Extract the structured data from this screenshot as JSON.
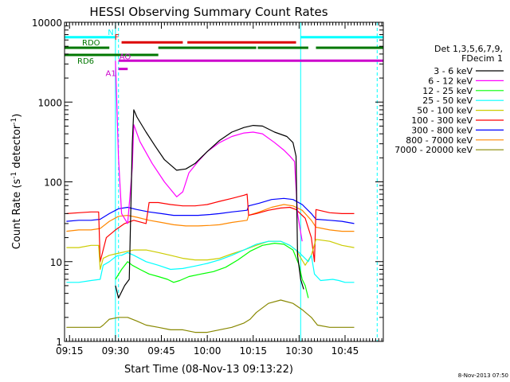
{
  "chart_data": {
    "type": "line",
    "title": "HESSI Observing Summary Count Rates",
    "xlabel": "Start Time (08-Nov-13 09:13:22)",
    "ylabel": "Count Rate (s^-1 detector^-1)",
    "ylabel_parts": {
      "base": "Count Rate (s",
      "sup1": "-1",
      "mid": " detector",
      "sup2": "-1",
      "end": ")"
    },
    "x_ticks": [
      "09:15",
      "09:30",
      "09:45",
      "10:00",
      "10:15",
      "10:30",
      "10:45"
    ],
    "x_tick_minutes": [
      15,
      30,
      45,
      60,
      75,
      90,
      105
    ],
    "y_ticks": [
      "1",
      "10",
      "100",
      "1000",
      "10000"
    ],
    "xlim_minutes": [
      13.37,
      117.5
    ],
    "ylim": [
      1,
      10000
    ],
    "y_scale": "log",
    "legend_placement": "right",
    "legend_title": [
      "Det 1,3,5,6,7,9,",
      "FDecim 1"
    ],
    "timestamp": "8-Nov-2013 07:50",
    "series": [
      {
        "name": "3 - 6 keV",
        "color": "#000000",
        "points": [
          [
            30,
            5
          ],
          [
            31,
            3.5
          ],
          [
            33,
            5
          ],
          [
            34.5,
            6
          ],
          [
            35.5,
            300
          ],
          [
            36,
            800
          ],
          [
            37,
            650
          ],
          [
            40,
            420
          ],
          [
            43,
            280
          ],
          [
            46,
            190
          ],
          [
            50,
            140
          ],
          [
            53,
            145
          ],
          [
            56,
            170
          ],
          [
            60,
            240
          ],
          [
            64,
            330
          ],
          [
            68,
            420
          ],
          [
            72,
            480
          ],
          [
            75,
            510
          ],
          [
            78,
            500
          ],
          [
            82,
            420
          ],
          [
            86,
            370
          ],
          [
            88,
            310
          ],
          [
            89,
            210
          ],
          [
            89.5,
            12
          ],
          [
            90.5,
            6
          ],
          [
            91.5,
            4.5
          ]
        ]
      },
      {
        "name": "6 - 12 keV",
        "color": "#ff00ff",
        "points": [
          [
            30,
            3300
          ],
          [
            31,
            200
          ],
          [
            32,
            40
          ],
          [
            34,
            30
          ],
          [
            35.5,
            150
          ],
          [
            36,
            520
          ],
          [
            38,
            320
          ],
          [
            42,
            170
          ],
          [
            46,
            100
          ],
          [
            50,
            65
          ],
          [
            52,
            75
          ],
          [
            54,
            130
          ],
          [
            57,
            180
          ],
          [
            60,
            240
          ],
          [
            64,
            310
          ],
          [
            68,
            370
          ],
          [
            72,
            410
          ],
          [
            75,
            420
          ],
          [
            78,
            400
          ],
          [
            82,
            310
          ],
          [
            85,
            250
          ],
          [
            87,
            210
          ],
          [
            88.5,
            180
          ],
          [
            89.5,
            40
          ],
          [
            91,
            18
          ]
        ]
      },
      {
        "name": "12 - 25 keV",
        "color": "#00ff00",
        "points": [
          [
            30,
            6
          ],
          [
            32,
            8
          ],
          [
            34,
            10
          ],
          [
            35.5,
            9
          ],
          [
            38,
            8
          ],
          [
            41,
            7
          ],
          [
            44,
            6.5
          ],
          [
            47,
            6
          ],
          [
            49,
            5.5
          ],
          [
            51,
            5.8
          ],
          [
            54,
            6.5
          ],
          [
            58,
            7
          ],
          [
            62,
            7.5
          ],
          [
            66,
            8.5
          ],
          [
            70,
            10.5
          ],
          [
            74,
            13.5
          ],
          [
            78,
            16
          ],
          [
            82,
            17
          ],
          [
            85,
            16.5
          ],
          [
            88,
            14
          ],
          [
            90,
            9
          ],
          [
            91,
            6
          ],
          [
            92,
            5
          ],
          [
            93,
            3.5
          ]
        ]
      },
      {
        "name": "25 - 50 keV",
        "color": "#00ffff",
        "points": [
          [
            14,
            5.5
          ],
          [
            18,
            5.5
          ],
          [
            22,
            5.8
          ],
          [
            25,
            6
          ],
          [
            26,
            9
          ],
          [
            28,
            10
          ],
          [
            30,
            11.5
          ],
          [
            31,
            12
          ],
          [
            32,
            12
          ],
          [
            34,
            13
          ],
          [
            36,
            12
          ],
          [
            40,
            10
          ],
          [
            44,
            9
          ],
          [
            48,
            8
          ],
          [
            52,
            8.2
          ],
          [
            56,
            8.8
          ],
          [
            60,
            9.5
          ],
          [
            64,
            10.5
          ],
          [
            68,
            12
          ],
          [
            72,
            14
          ],
          [
            76,
            16.5
          ],
          [
            80,
            18
          ],
          [
            84,
            18
          ],
          [
            87,
            16
          ],
          [
            90,
            13
          ],
          [
            93,
            10
          ],
          [
            94,
            12
          ],
          [
            95,
            7
          ],
          [
            97,
            5.8
          ],
          [
            101,
            6
          ],
          [
            103,
            5.8
          ],
          [
            105,
            5.5
          ],
          [
            108,
            5.5
          ]
        ]
      },
      {
        "name": "50 - 100 keV",
        "color": "#cccc00",
        "points": [
          [
            14,
            15
          ],
          [
            18,
            15
          ],
          [
            22,
            16
          ],
          [
            24.5,
            16
          ],
          [
            25,
            8
          ],
          [
            26,
            11
          ],
          [
            28,
            12
          ],
          [
            30,
            12.5
          ],
          [
            32,
            13
          ],
          [
            36,
            14
          ],
          [
            40,
            14
          ],
          [
            44,
            13
          ],
          [
            48,
            12
          ],
          [
            52,
            11
          ],
          [
            56,
            10.5
          ],
          [
            60,
            10.5
          ],
          [
            64,
            11
          ],
          [
            68,
            12.5
          ],
          [
            72,
            14
          ],
          [
            76,
            16
          ],
          [
            80,
            18
          ],
          [
            84,
            18
          ],
          [
            87,
            16
          ],
          [
            89,
            14
          ],
          [
            92,
            9
          ],
          [
            94,
            12
          ],
          [
            95.5,
            19
          ],
          [
            100,
            18
          ],
          [
            104,
            16
          ],
          [
            108,
            15
          ]
        ]
      },
      {
        "name": "100 - 300 keV",
        "color": "#ff0000",
        "points": [
          [
            14,
            40
          ],
          [
            18,
            41
          ],
          [
            22,
            42
          ],
          [
            24.5,
            42
          ],
          [
            25,
            10
          ],
          [
            27,
            20
          ],
          [
            30,
            25
          ],
          [
            33,
            30
          ],
          [
            36,
            33
          ],
          [
            40,
            30
          ],
          [
            41,
            55
          ],
          [
            44,
            55
          ],
          [
            48,
            52
          ],
          [
            52,
            50
          ],
          [
            56,
            50
          ],
          [
            60,
            52
          ],
          [
            64,
            57
          ],
          [
            68,
            62
          ],
          [
            72,
            68
          ],
          [
            73,
            70
          ],
          [
            73.5,
            38
          ],
          [
            76,
            40
          ],
          [
            80,
            44
          ],
          [
            84,
            47
          ],
          [
            87,
            48
          ],
          [
            89,
            45
          ],
          [
            92,
            35
          ],
          [
            94,
            20
          ],
          [
            95,
            10
          ],
          [
            95.5,
            45
          ],
          [
            100,
            41
          ],
          [
            104,
            40
          ],
          [
            108,
            40
          ]
        ]
      },
      {
        "name": "300 - 800 keV",
        "color": "#0000ff",
        "points": [
          [
            14,
            32
          ],
          [
            18,
            33
          ],
          [
            22,
            33
          ],
          [
            25,
            34
          ],
          [
            28,
            40
          ],
          [
            31,
            46
          ],
          [
            34,
            48
          ],
          [
            37,
            45
          ],
          [
            41,
            42
          ],
          [
            45,
            40
          ],
          [
            49,
            38
          ],
          [
            53,
            38
          ],
          [
            57,
            38
          ],
          [
            61,
            39
          ],
          [
            64,
            40
          ],
          [
            68,
            42
          ],
          [
            73,
            44
          ],
          [
            73.5,
            50
          ],
          [
            77,
            54
          ],
          [
            81,
            60
          ],
          [
            85,
            62
          ],
          [
            88,
            60
          ],
          [
            91,
            52
          ],
          [
            94,
            40
          ],
          [
            95.5,
            34
          ],
          [
            100,
            33
          ],
          [
            104,
            32
          ],
          [
            108,
            30
          ]
        ]
      },
      {
        "name": "800 - 7000 keV",
        "color": "#ff8800",
        "points": [
          [
            14,
            24
          ],
          [
            18,
            25
          ],
          [
            22,
            25
          ],
          [
            25,
            26
          ],
          [
            28,
            32
          ],
          [
            31,
            37
          ],
          [
            34,
            38
          ],
          [
            37,
            36
          ],
          [
            41,
            33
          ],
          [
            45,
            31
          ],
          [
            49,
            29
          ],
          [
            53,
            28
          ],
          [
            57,
            28
          ],
          [
            61,
            28.5
          ],
          [
            64,
            29
          ],
          [
            68,
            31
          ],
          [
            73,
            33
          ],
          [
            73.5,
            38
          ],
          [
            77,
            42
          ],
          [
            81,
            48
          ],
          [
            85,
            52
          ],
          [
            88,
            50
          ],
          [
            91,
            44
          ],
          [
            94,
            33
          ],
          [
            95.5,
            27
          ],
          [
            100,
            25
          ],
          [
            104,
            24
          ],
          [
            108,
            24
          ]
        ]
      },
      {
        "name": "7000 - 20000 keV",
        "color": "#888800",
        "points": [
          [
            14,
            1.5
          ],
          [
            20,
            1.5
          ],
          [
            25,
            1.5
          ],
          [
            26,
            1.6
          ],
          [
            28,
            1.9
          ],
          [
            31,
            2
          ],
          [
            34,
            2
          ],
          [
            37,
            1.8
          ],
          [
            40,
            1.6
          ],
          [
            44,
            1.5
          ],
          [
            48,
            1.4
          ],
          [
            52,
            1.4
          ],
          [
            56,
            1.3
          ],
          [
            60,
            1.3
          ],
          [
            64,
            1.4
          ],
          [
            68,
            1.5
          ],
          [
            72,
            1.7
          ],
          [
            74,
            1.9
          ],
          [
            76,
            2.3
          ],
          [
            80,
            3
          ],
          [
            84,
            3.3
          ],
          [
            88,
            3
          ],
          [
            91,
            2.5
          ],
          [
            94,
            2
          ],
          [
            96,
            1.6
          ],
          [
            100,
            1.5
          ],
          [
            104,
            1.5
          ],
          [
            108,
            1.5
          ]
        ]
      }
    ],
    "flags": [
      {
        "label": "N",
        "color": "#00ffff",
        "level": 6500,
        "segments": [
          [
            13.37,
            30
          ],
          [
            90.5,
            117.5
          ]
        ]
      },
      {
        "label": "F",
        "color": "#dd0000",
        "level": 5600,
        "segments": [
          [
            32,
            52
          ],
          [
            53.5,
            89
          ]
        ]
      },
      {
        "label": "RDO",
        "color": "#007700",
        "level": 4800,
        "segments": [
          [
            13.37,
            28
          ],
          [
            44,
            76
          ],
          [
            76.5,
            93
          ],
          [
            95.5,
            117.5
          ]
        ]
      },
      {
        "label": "RD6",
        "color": "#007700",
        "level": 3900,
        "segments": [
          [
            13.37,
            44
          ]
        ]
      },
      {
        "label": "AO",
        "color": "#cc00cc",
        "level": 3300,
        "segments": [
          [
            31,
            117.5
          ]
        ]
      },
      {
        "label": "A1",
        "color": "#cc00cc",
        "level": 2600,
        "segments": [
          [
            31,
            34
          ]
        ]
      }
    ],
    "vertical_markers": [
      {
        "minute": 30,
        "color": "#00ffff",
        "style": "solid"
      },
      {
        "minute": 31,
        "color": "#00ffff",
        "style": "dashed"
      },
      {
        "minute": 90.5,
        "color": "#00ffff",
        "style": "solid"
      },
      {
        "minute": 115.5,
        "color": "#00ffff",
        "style": "dashed"
      }
    ]
  }
}
